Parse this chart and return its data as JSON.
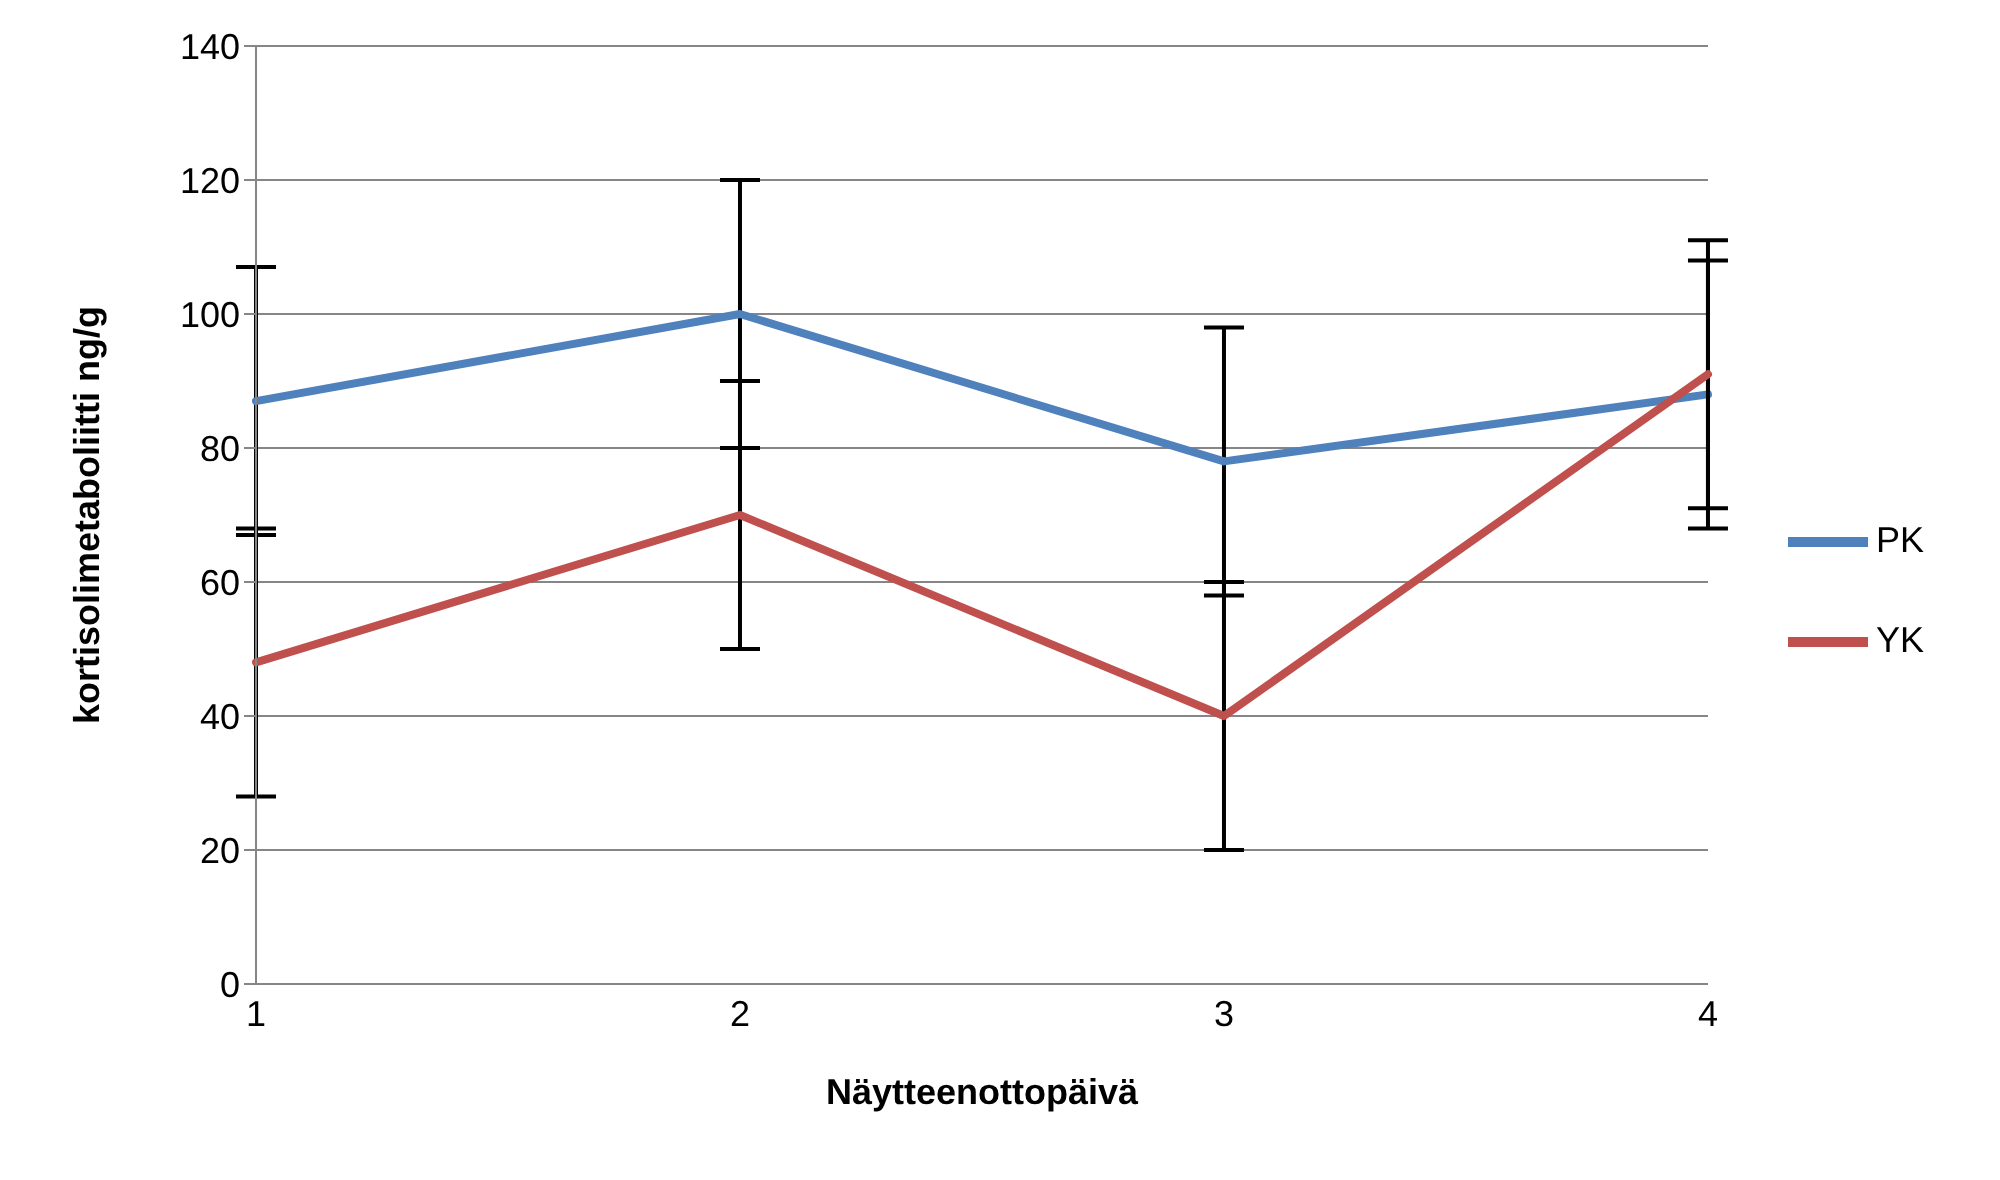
{
  "chart_data": {
    "type": "line",
    "xlabel": "Näytteenottopäivä",
    "ylabel": "kortisolimetaboliitti ng/g",
    "categories": [
      "1",
      "2",
      "3",
      "4"
    ],
    "series": [
      {
        "name": "PK",
        "color": "#4f81bd",
        "values": [
          87,
          100,
          78,
          88
        ],
        "errors": [
          20,
          20,
          20,
          20
        ]
      },
      {
        "name": "YK",
        "color": "#c0504d",
        "values": [
          48,
          70,
          40,
          91
        ],
        "errors": [
          20,
          20,
          20,
          20
        ]
      }
    ],
    "ylim": [
      0,
      140
    ],
    "yticks": [
      0,
      20,
      40,
      60,
      80,
      100,
      120,
      140
    ],
    "grid": "y",
    "legend": "right",
    "marker": "none",
    "line_style": "solid"
  }
}
